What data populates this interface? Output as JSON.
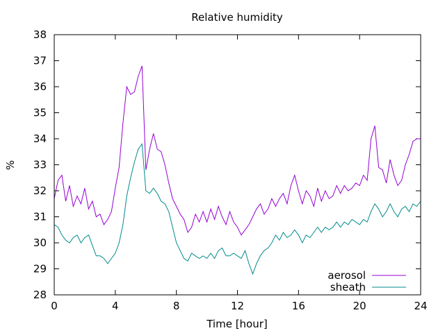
{
  "chart_data": {
    "type": "line",
    "title": "Relative humidity",
    "xlabel": "Time [hour]",
    "ylabel": "%",
    "xlim": [
      0,
      24
    ],
    "ylim": [
      28,
      38
    ],
    "xticks": [
      0,
      4,
      8,
      12,
      16,
      20,
      24
    ],
    "yticks": [
      28,
      29,
      30,
      31,
      32,
      33,
      34,
      35,
      36,
      37,
      38
    ],
    "grid": false,
    "legend_position": "bottom-right",
    "series": [
      {
        "name": "aerosol",
        "color": "#9400d3",
        "points": [
          [
            0.0,
            31.7
          ],
          [
            0.25,
            32.4
          ],
          [
            0.5,
            32.6
          ],
          [
            0.75,
            31.6
          ],
          [
            1.0,
            32.2
          ],
          [
            1.25,
            31.4
          ],
          [
            1.5,
            31.8
          ],
          [
            1.75,
            31.5
          ],
          [
            2.0,
            32.1
          ],
          [
            2.25,
            31.3
          ],
          [
            2.5,
            31.6
          ],
          [
            2.75,
            31.0
          ],
          [
            3.0,
            31.1
          ],
          [
            3.25,
            30.7
          ],
          [
            3.5,
            30.9
          ],
          [
            3.75,
            31.2
          ],
          [
            4.0,
            32.1
          ],
          [
            4.25,
            32.9
          ],
          [
            4.5,
            34.6
          ],
          [
            4.75,
            36.0
          ],
          [
            5.0,
            35.7
          ],
          [
            5.25,
            35.8
          ],
          [
            5.5,
            36.4
          ],
          [
            5.75,
            36.8
          ],
          [
            6.0,
            32.8
          ],
          [
            6.25,
            33.6
          ],
          [
            6.5,
            34.2
          ],
          [
            6.75,
            33.6
          ],
          [
            7.0,
            33.5
          ],
          [
            7.25,
            33.0
          ],
          [
            7.5,
            32.3
          ],
          [
            7.75,
            31.7
          ],
          [
            8.0,
            31.4
          ],
          [
            8.25,
            31.1
          ],
          [
            8.5,
            30.9
          ],
          [
            8.75,
            30.4
          ],
          [
            9.0,
            30.6
          ],
          [
            9.25,
            31.1
          ],
          [
            9.5,
            30.8
          ],
          [
            9.75,
            31.2
          ],
          [
            10.0,
            30.8
          ],
          [
            10.25,
            31.3
          ],
          [
            10.5,
            30.9
          ],
          [
            10.75,
            31.4
          ],
          [
            11.0,
            31.0
          ],
          [
            11.25,
            30.7
          ],
          [
            11.5,
            31.2
          ],
          [
            11.75,
            30.8
          ],
          [
            12.0,
            30.6
          ],
          [
            12.25,
            30.3
          ],
          [
            12.5,
            30.5
          ],
          [
            12.75,
            30.7
          ],
          [
            13.0,
            31.0
          ],
          [
            13.25,
            31.3
          ],
          [
            13.5,
            31.5
          ],
          [
            13.75,
            31.1
          ],
          [
            14.0,
            31.3
          ],
          [
            14.25,
            31.7
          ],
          [
            14.5,
            31.4
          ],
          [
            14.75,
            31.7
          ],
          [
            15.0,
            31.9
          ],
          [
            15.25,
            31.5
          ],
          [
            15.5,
            32.2
          ],
          [
            15.75,
            32.6
          ],
          [
            16.0,
            32.0
          ],
          [
            16.25,
            31.5
          ],
          [
            16.5,
            32.0
          ],
          [
            16.75,
            31.8
          ],
          [
            17.0,
            31.4
          ],
          [
            17.25,
            32.1
          ],
          [
            17.5,
            31.6
          ],
          [
            17.75,
            32.0
          ],
          [
            18.0,
            31.7
          ],
          [
            18.25,
            31.8
          ],
          [
            18.5,
            32.2
          ],
          [
            18.75,
            31.9
          ],
          [
            19.0,
            32.2
          ],
          [
            19.25,
            32.0
          ],
          [
            19.5,
            32.1
          ],
          [
            19.75,
            32.3
          ],
          [
            20.0,
            32.2
          ],
          [
            20.25,
            32.6
          ],
          [
            20.5,
            32.4
          ],
          [
            20.75,
            34.0
          ],
          [
            21.0,
            34.5
          ],
          [
            21.25,
            32.9
          ],
          [
            21.5,
            32.8
          ],
          [
            21.75,
            32.3
          ],
          [
            22.0,
            33.2
          ],
          [
            22.25,
            32.6
          ],
          [
            22.5,
            32.2
          ],
          [
            22.75,
            32.4
          ],
          [
            23.0,
            33.0
          ],
          [
            23.25,
            33.4
          ],
          [
            23.5,
            33.9
          ],
          [
            23.75,
            34.0
          ],
          [
            24.0,
            34.0
          ]
        ]
      },
      {
        "name": "sheath",
        "color": "#008b8b",
        "points": [
          [
            0.0,
            30.7
          ],
          [
            0.25,
            30.6
          ],
          [
            0.5,
            30.3
          ],
          [
            0.75,
            30.1
          ],
          [
            1.0,
            30.0
          ],
          [
            1.25,
            30.2
          ],
          [
            1.5,
            30.3
          ],
          [
            1.75,
            30.0
          ],
          [
            2.0,
            30.2
          ],
          [
            2.25,
            30.3
          ],
          [
            2.5,
            29.9
          ],
          [
            2.75,
            29.5
          ],
          [
            3.0,
            29.5
          ],
          [
            3.25,
            29.4
          ],
          [
            3.5,
            29.2
          ],
          [
            3.75,
            29.4
          ],
          [
            4.0,
            29.6
          ],
          [
            4.25,
            30.0
          ],
          [
            4.5,
            30.7
          ],
          [
            4.75,
            31.8
          ],
          [
            5.0,
            32.5
          ],
          [
            5.25,
            33.1
          ],
          [
            5.5,
            33.6
          ],
          [
            5.75,
            33.8
          ],
          [
            6.0,
            32.0
          ],
          [
            6.25,
            31.9
          ],
          [
            6.5,
            32.1
          ],
          [
            6.75,
            31.9
          ],
          [
            7.0,
            31.6
          ],
          [
            7.25,
            31.5
          ],
          [
            7.5,
            31.2
          ],
          [
            7.75,
            30.6
          ],
          [
            8.0,
            30.0
          ],
          [
            8.25,
            29.7
          ],
          [
            8.5,
            29.4
          ],
          [
            8.75,
            29.3
          ],
          [
            9.0,
            29.6
          ],
          [
            9.25,
            29.5
          ],
          [
            9.5,
            29.4
          ],
          [
            9.75,
            29.5
          ],
          [
            10.0,
            29.4
          ],
          [
            10.25,
            29.6
          ],
          [
            10.5,
            29.4
          ],
          [
            10.75,
            29.7
          ],
          [
            11.0,
            29.8
          ],
          [
            11.25,
            29.5
          ],
          [
            11.5,
            29.5
          ],
          [
            11.75,
            29.6
          ],
          [
            12.0,
            29.5
          ],
          [
            12.25,
            29.4
          ],
          [
            12.5,
            29.7
          ],
          [
            12.75,
            29.2
          ],
          [
            13.0,
            28.8
          ],
          [
            13.25,
            29.2
          ],
          [
            13.5,
            29.5
          ],
          [
            13.75,
            29.7
          ],
          [
            14.0,
            29.8
          ],
          [
            14.25,
            30.0
          ],
          [
            14.5,
            30.3
          ],
          [
            14.75,
            30.1
          ],
          [
            15.0,
            30.4
          ],
          [
            15.25,
            30.2
          ],
          [
            15.5,
            30.3
          ],
          [
            15.75,
            30.5
          ],
          [
            16.0,
            30.3
          ],
          [
            16.25,
            30.0
          ],
          [
            16.5,
            30.3
          ],
          [
            16.75,
            30.2
          ],
          [
            17.0,
            30.4
          ],
          [
            17.25,
            30.6
          ],
          [
            17.5,
            30.4
          ],
          [
            17.75,
            30.6
          ],
          [
            18.0,
            30.5
          ],
          [
            18.25,
            30.6
          ],
          [
            18.5,
            30.8
          ],
          [
            18.75,
            30.6
          ],
          [
            19.0,
            30.8
          ],
          [
            19.25,
            30.7
          ],
          [
            19.5,
            30.9
          ],
          [
            19.75,
            30.8
          ],
          [
            20.0,
            30.7
          ],
          [
            20.25,
            30.9
          ],
          [
            20.5,
            30.8
          ],
          [
            20.75,
            31.2
          ],
          [
            21.0,
            31.5
          ],
          [
            21.25,
            31.3
          ],
          [
            21.5,
            31.0
          ],
          [
            21.75,
            31.2
          ],
          [
            22.0,
            31.5
          ],
          [
            22.25,
            31.2
          ],
          [
            22.5,
            31.0
          ],
          [
            22.75,
            31.3
          ],
          [
            23.0,
            31.4
          ],
          [
            23.25,
            31.2
          ],
          [
            23.5,
            31.5
          ],
          [
            23.75,
            31.4
          ],
          [
            24.0,
            31.6
          ]
        ]
      }
    ]
  }
}
